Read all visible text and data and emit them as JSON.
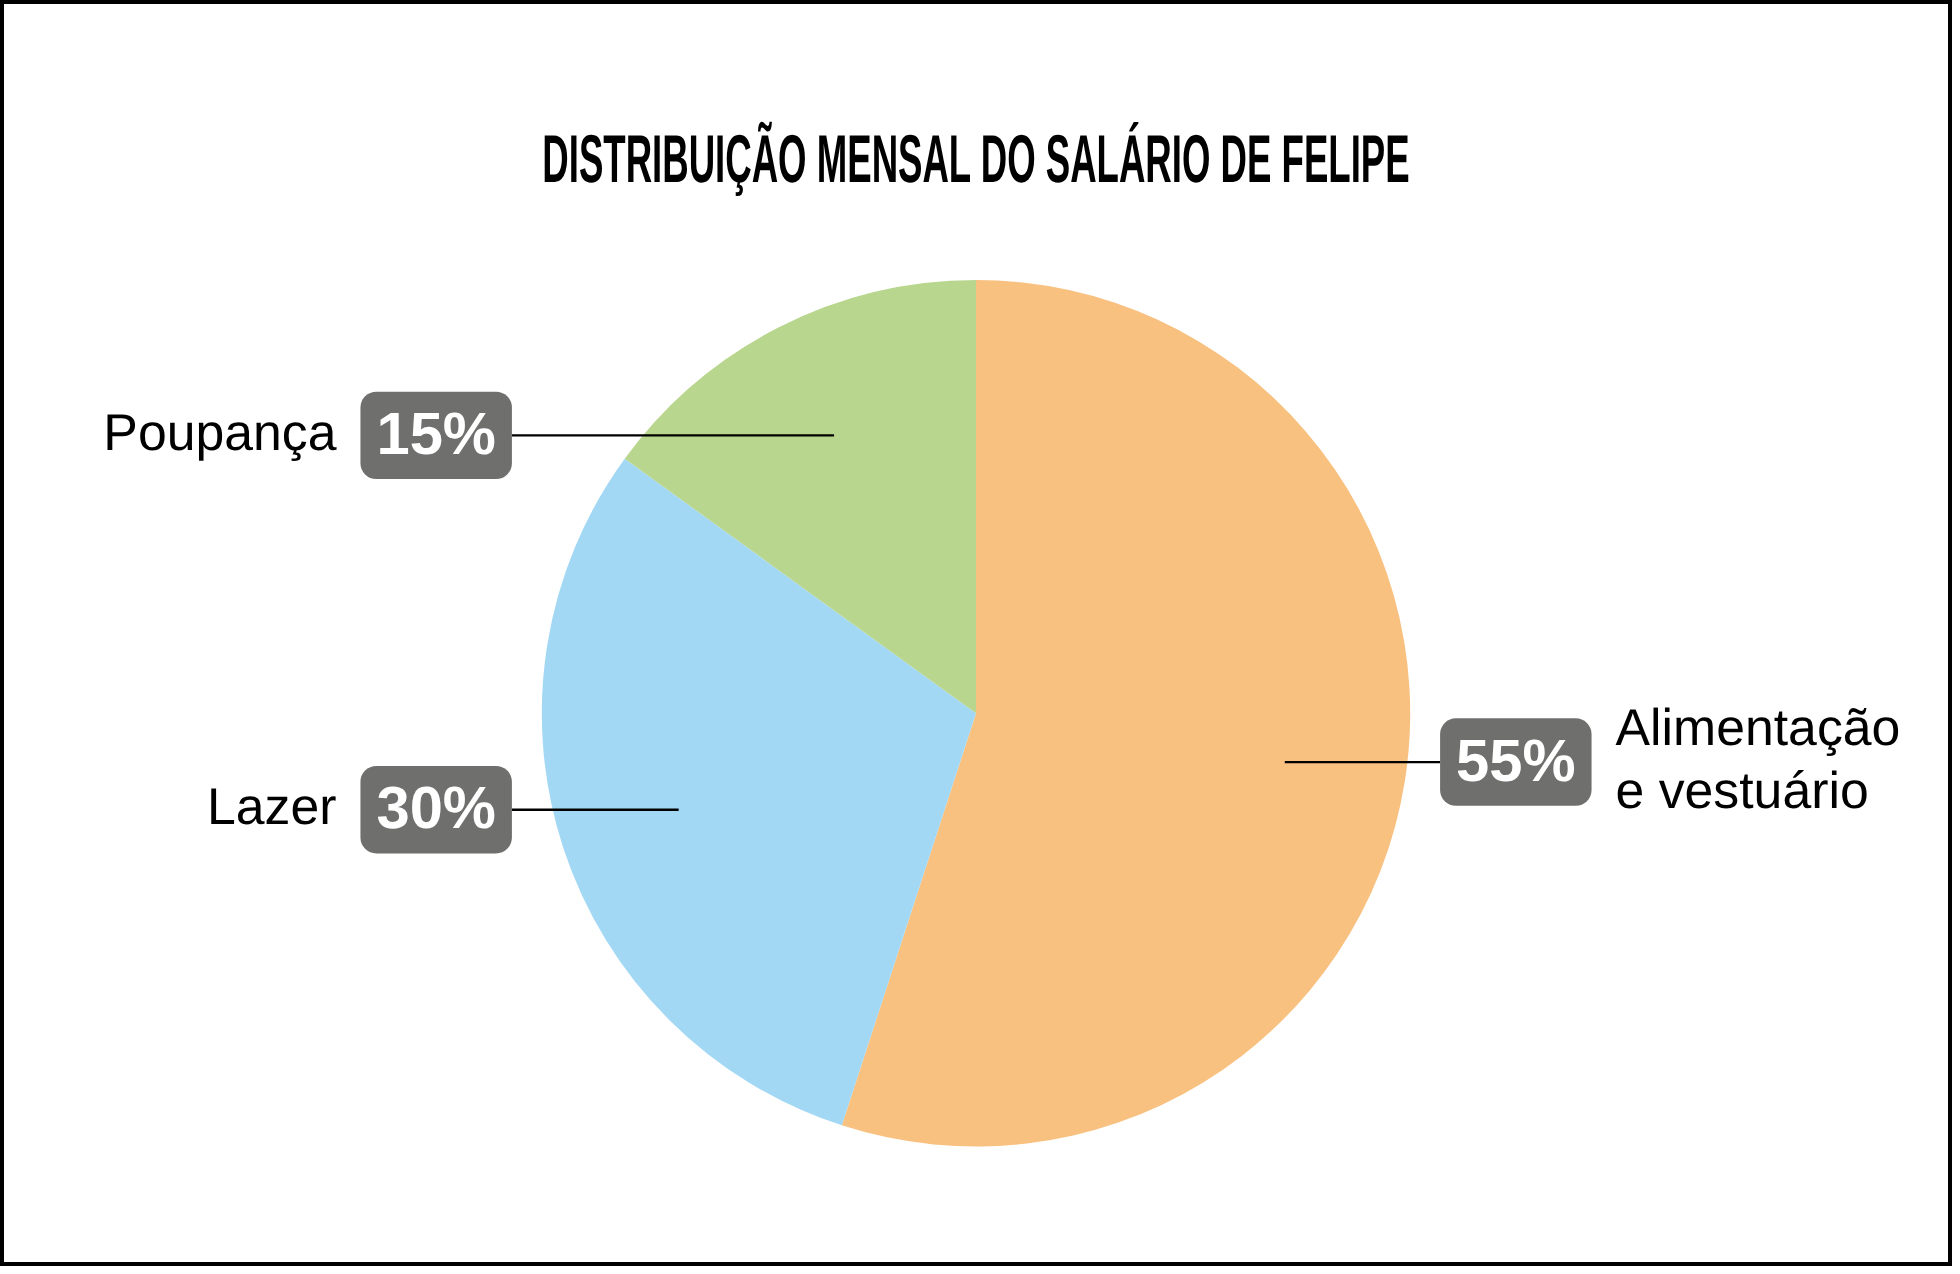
{
  "chart_data": {
    "type": "pie",
    "title": "DISTRIBUIÇÃO MENSAL DO SALÁRIO DE FELIPE",
    "categories": [
      "Alimentação e vestuário",
      "Lazer",
      "Poupança"
    ],
    "values": [
      55,
      30,
      15
    ],
    "value_labels": [
      "55%",
      "30%",
      "15%"
    ],
    "colors": [
      "#f8c180",
      "#a3d8f4",
      "#b9d68f"
    ],
    "legend": false
  }
}
